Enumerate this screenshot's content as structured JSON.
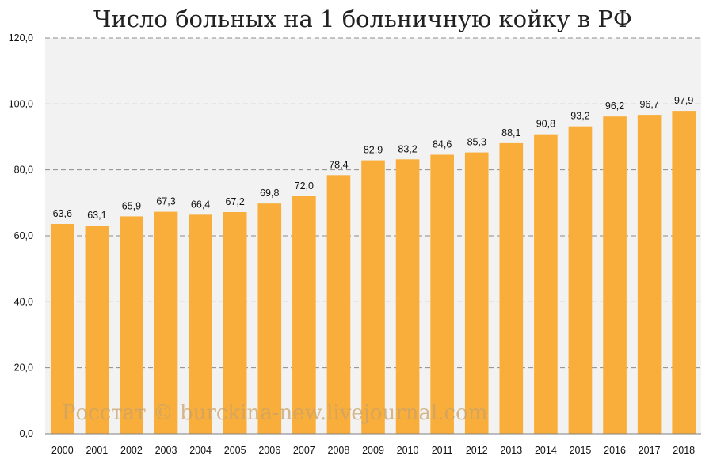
{
  "chart_data": {
    "type": "bar",
    "title": "Число больных на 1 больничную койку в РФ",
    "categories": [
      "2000",
      "2001",
      "2002",
      "2003",
      "2004",
      "2005",
      "2006",
      "2007",
      "2008",
      "2009",
      "2010",
      "2011",
      "2012",
      "2013",
      "2014",
      "2015",
      "2016",
      "2017",
      "2018"
    ],
    "values": [
      63.6,
      63.1,
      65.9,
      67.3,
      66.4,
      67.2,
      69.8,
      72.0,
      78.4,
      82.9,
      83.2,
      84.6,
      85.3,
      88.1,
      90.8,
      93.2,
      96.2,
      96.7,
      97.9
    ],
    "data_labels": [
      "63,6",
      "63,1",
      "65,9",
      "67,3",
      "66,4",
      "67,2",
      "69,8",
      "72,0",
      "78,4",
      "82,9",
      "83,2",
      "84,6",
      "85,3",
      "88,1",
      "90,8",
      "93,2",
      "96,2",
      "96,7",
      "97,9"
    ],
    "yticks": [
      0,
      20,
      40,
      60,
      80,
      100,
      120
    ],
    "ytick_labels": [
      "0,0",
      "20,0",
      "40,0",
      "60,0",
      "80,0",
      "100,0",
      "120,0"
    ],
    "ylim": [
      0,
      120
    ],
    "xlabel": "",
    "ylabel": "",
    "grid": true,
    "bar_color": "#f9ae3b",
    "plot_background": "#f2f2f2",
    "watermark": "Росстат © burckina-new.livejournal.com"
  }
}
